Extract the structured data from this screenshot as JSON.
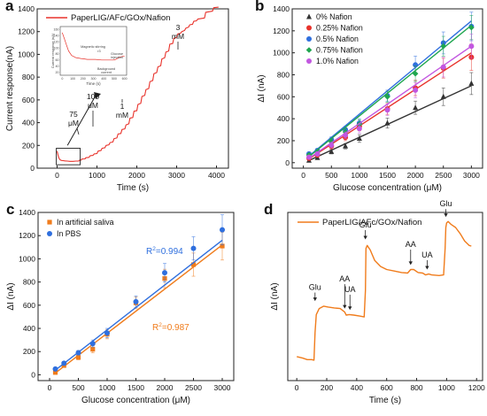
{
  "chart_data": [
    {
      "panel": "a",
      "type": "line",
      "xlabel": "Time (s)",
      "ylabel": "Current response(nA)",
      "xlim": [
        -500,
        4300
      ],
      "ylim": [
        0,
        1400
      ],
      "xticks": [
        0,
        1000,
        2000,
        3000,
        4000
      ],
      "yticks": [
        0,
        200,
        400,
        600,
        800,
        1000,
        1200,
        1400
      ],
      "legend": {
        "label": "PaperLIG/AFc/GOx/Nafion",
        "position": "top-left"
      },
      "series": [
        {
          "color": "#e8322b",
          "x": [
            0,
            20,
            40,
            60,
            80,
            110,
            150,
            200,
            260,
            320,
            400,
            470,
            540,
            560,
            600,
            620,
            700,
            720,
            800,
            830,
            900,
            930,
            1000,
            1030,
            1100,
            1130,
            1200,
            1230,
            1300,
            1330,
            1400,
            1430,
            1500,
            1530,
            1600,
            1630,
            1700,
            1730,
            1800,
            1830,
            1900,
            1930,
            2000,
            2030,
            2100,
            2130,
            2200,
            2230,
            2300,
            2330,
            2400,
            2430,
            2500,
            2530,
            2600,
            2630,
            2700,
            2730,
            2800,
            2830,
            2900,
            2930,
            3000,
            3030,
            3100,
            3130,
            3200,
            3230,
            3300,
            3330,
            3400,
            3430,
            3500,
            3530,
            3700,
            3730,
            3900,
            3930,
            4050
          ],
          "y": [
            150,
            120,
            95,
            80,
            72,
            68,
            66,
            64,
            62,
            60,
            60,
            62,
            62,
            70,
            70,
            80,
            82,
            92,
            95,
            110,
            112,
            125,
            128,
            150,
            155,
            175,
            180,
            200,
            205,
            225,
            230,
            260,
            265,
            300,
            305,
            340,
            345,
            380,
            390,
            440,
            445,
            500,
            505,
            560,
            570,
            630,
            640,
            690,
            700,
            760,
            770,
            830,
            840,
            890,
            900,
            960,
            970,
            1020,
            1030,
            1090,
            1095,
            1140,
            1150,
            1180,
            1185,
            1200,
            1210,
            1230,
            1240,
            1260,
            1265,
            1290,
            1295,
            1310,
            1320,
            1370,
            1380,
            1410,
            1415
          ]
        }
      ],
      "annotations": [
        "75",
        "μM",
        "100",
        "μM",
        "1",
        "mM",
        "3",
        "mM"
      ],
      "inset": {
        "type": "line",
        "xlabel": "Time (s)",
        "ylabel": "Current response (nA)",
        "xticks": [
          0,
          100,
          200,
          300,
          400,
          500,
          600
        ],
        "yticks": [
          20,
          40,
          60,
          80,
          100,
          120,
          140,
          160
        ],
        "notes": [
          "Magnetic stirring",
          "Glucose injection",
          "Background current"
        ],
        "series": [
          {
            "color": "#e8322b",
            "x": [
              0,
              20,
              40,
              60,
              90,
              130,
              180,
              200,
              240,
              280,
              320,
              380,
              420,
              440,
              470,
              500,
              520,
              545,
              560,
              580,
              600
            ],
            "y": [
              150,
              130,
              110,
              90,
              75,
              68,
              65,
              64,
              62,
              62,
              62,
              60,
              60,
              60,
              60,
              60,
              63,
              68,
              70,
              72,
              72
            ]
          }
        ]
      }
    },
    {
      "panel": "b",
      "type": "scatter",
      "xlabel": "Glucose concentration (μM)",
      "ylabel": "ΔI (nA)",
      "xlim": [
        -200,
        3200
      ],
      "ylim": [
        -50,
        1400
      ],
      "xticks": [
        0,
        500,
        1000,
        1500,
        2000,
        2500,
        3000
      ],
      "yticks": [
        0,
        200,
        400,
        600,
        800,
        1000,
        1200,
        1400
      ],
      "legend_position": "top-left",
      "x": [
        100,
        250,
        500,
        750,
        1000,
        1500,
        2000,
        2500,
        3000
      ],
      "series": [
        {
          "name": "0% Nafion",
          "color": "#333333",
          "marker": "triangle",
          "values": [
            20,
            45,
            100,
            150,
            220,
            360,
            500,
            600,
            720
          ],
          "error": [
            10,
            15,
            20,
            25,
            35,
            45,
            60,
            80,
            100
          ],
          "fit": [
            [
              100,
              20
            ],
            [
              3000,
              700
            ]
          ]
        },
        {
          "name": "0.25% Nafion",
          "color": "#e8322b",
          "marker": "circle",
          "values": [
            40,
            70,
            150,
            230,
            330,
            490,
            680,
            860,
            960
          ],
          "error": [
            15,
            20,
            25,
            30,
            40,
            50,
            70,
            90,
            120
          ],
          "fit": [
            [
              100,
              35
            ],
            [
              3000,
              1000
            ]
          ]
        },
        {
          "name": "0.5% Nafion",
          "color": "#2f6fde",
          "marker": "circle",
          "values": [
            80,
            110,
            210,
            300,
            360,
            610,
            890,
            1090,
            1240
          ],
          "error": [
            15,
            20,
            25,
            30,
            40,
            50,
            80,
            100,
            130
          ],
          "fit": [
            [
              100,
              60
            ],
            [
              3000,
              1290
            ]
          ]
        },
        {
          "name": "0.75% Nafion",
          "color": "#1fa64f",
          "marker": "diamond",
          "values": [
            70,
            100,
            190,
            280,
            350,
            600,
            810,
            1060,
            1230
          ],
          "error": [
            15,
            20,
            25,
            30,
            40,
            50,
            70,
            90,
            110
          ],
          "fit": [
            [
              100,
              55
            ],
            [
              3000,
              1250
            ]
          ]
        },
        {
          "name": "1.0% Nafion",
          "color": "#c257e0",
          "marker": "circle",
          "values": [
            50,
            80,
            160,
            250,
            310,
            480,
            660,
            870,
            1060
          ],
          "error": [
            15,
            20,
            25,
            30,
            40,
            50,
            70,
            90,
            110
          ],
          "fit": [
            [
              100,
              40
            ],
            [
              3000,
              1060
            ]
          ]
        }
      ]
    },
    {
      "panel": "c",
      "type": "scatter",
      "xlabel": "Glucose concentration (μM)",
      "ylabel": "ΔI (nA)",
      "xlim": [
        -200,
        3200
      ],
      "ylim": [
        -50,
        1400
      ],
      "xticks": [
        0,
        500,
        1000,
        1500,
        2000,
        2500,
        3000
      ],
      "yticks": [
        0,
        200,
        400,
        600,
        800,
        1000,
        1200,
        1400
      ],
      "legend_position": "top-left",
      "x": [
        100,
        250,
        500,
        750,
        1000,
        1500,
        2000,
        2500,
        3000
      ],
      "series": [
        {
          "name": "In artificial saliva",
          "color": "#f07c1c",
          "marker": "square",
          "values": [
            20,
            80,
            150,
            220,
            350,
            620,
            830,
            950,
            1110
          ],
          "error": [
            10,
            15,
            20,
            30,
            40,
            50,
            80,
            100,
            120
          ],
          "fit": [
            [
              100,
              15
            ],
            [
              3000,
              1120
            ]
          ],
          "r2": "R2=0.987"
        },
        {
          "name": "In PBS",
          "color": "#2f6fde",
          "marker": "circle",
          "values": [
            50,
            100,
            190,
            270,
            360,
            630,
            880,
            1090,
            1250
          ],
          "error": [
            10,
            15,
            20,
            30,
            40,
            50,
            80,
            100,
            130
          ],
          "fit": [
            [
              100,
              40
            ],
            [
              3000,
              1160
            ]
          ],
          "r2": "R2=0.994"
        }
      ]
    },
    {
      "panel": "d",
      "type": "line",
      "xlabel": "Time (s)",
      "ylabel": "ΔI (nA)",
      "xlim": [
        -60,
        1240
      ],
      "ylim": [
        -40,
        520
      ],
      "xticks": [
        0,
        200,
        400,
        600,
        800,
        1000,
        1200
      ],
      "legend": {
        "label": "PaperLIG/AFc/GOx/Nafion",
        "position": "top-left"
      },
      "annotations": [
        "Glu",
        "AA",
        "UA",
        "Glu",
        "AA",
        "UA",
        "Glu"
      ],
      "series": [
        {
          "color": "#f07c1c",
          "x": [
            0,
            40,
            70,
            100,
            115,
            122,
            130,
            150,
            180,
            210,
            250,
            290,
            320,
            330,
            350,
            380,
            420,
            450,
            458,
            462,
            470,
            490,
            520,
            560,
            600,
            650,
            700,
            740,
            760,
            780,
            810,
            840,
            860,
            880,
            900,
            950,
            980,
            990,
            995,
            1000,
            1010,
            1030,
            1060,
            1090,
            1120,
            1150,
            1165
          ],
          "y": [
            40,
            35,
            30,
            30,
            28,
            120,
            180,
            200,
            208,
            205,
            202,
            200,
            188,
            178,
            180,
            178,
            175,
            172,
            260,
            400,
            410,
            395,
            360,
            340,
            330,
            325,
            320,
            318,
            330,
            330,
            320,
            318,
            312,
            315,
            312,
            310,
            312,
            400,
            470,
            485,
            490,
            480,
            470,
            450,
            425,
            410,
            408
          ]
        }
      ]
    }
  ]
}
